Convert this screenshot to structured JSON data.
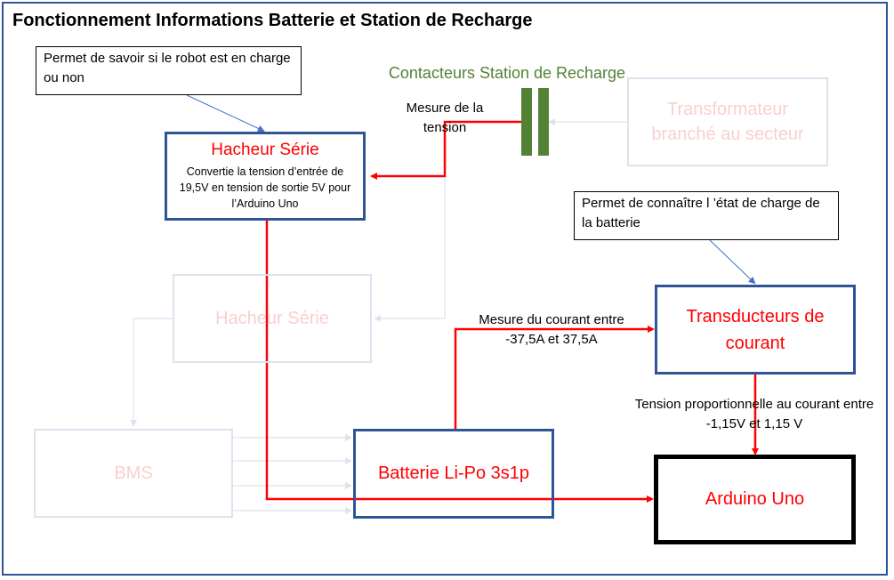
{
  "title": "Fonctionnement Informations Batterie et Station de Recharge",
  "notes": {
    "charging": "Permet de savoir si le robot est en charge ou non",
    "battery_state": "Permet de connaître l ’état de charge de la batterie"
  },
  "contacteurs_label": "Contacteurs Station de Recharge",
  "transformateur": "Transformateur branché au secteur",
  "hacheur_top": {
    "title": "Hacheur Série",
    "desc": "Convertie la tension d’entrée de 19,5V en tension de sortie 5V pour l’Arduino Uno"
  },
  "hacheur_faded": "Hacheur Série",
  "bms": "BMS",
  "batterie": "Batterie Li-Po 3s1p",
  "transducteurs": "Transducteurs de courant",
  "arduino": "Arduino Uno",
  "labels": {
    "mesure_tension": "Mesure de la tension",
    "mesure_courant": "Mesure du courant entre -37,5A et 37,5A",
    "tension_prop": "Tension proportionnelle au courant entre -1,15V et 1,15 V"
  },
  "colors": {
    "frame": "#2f5496",
    "red": "#ff0000",
    "green": "#548235",
    "faded_text": "#f8d0d0",
    "faded_border": "#dde3ee"
  }
}
